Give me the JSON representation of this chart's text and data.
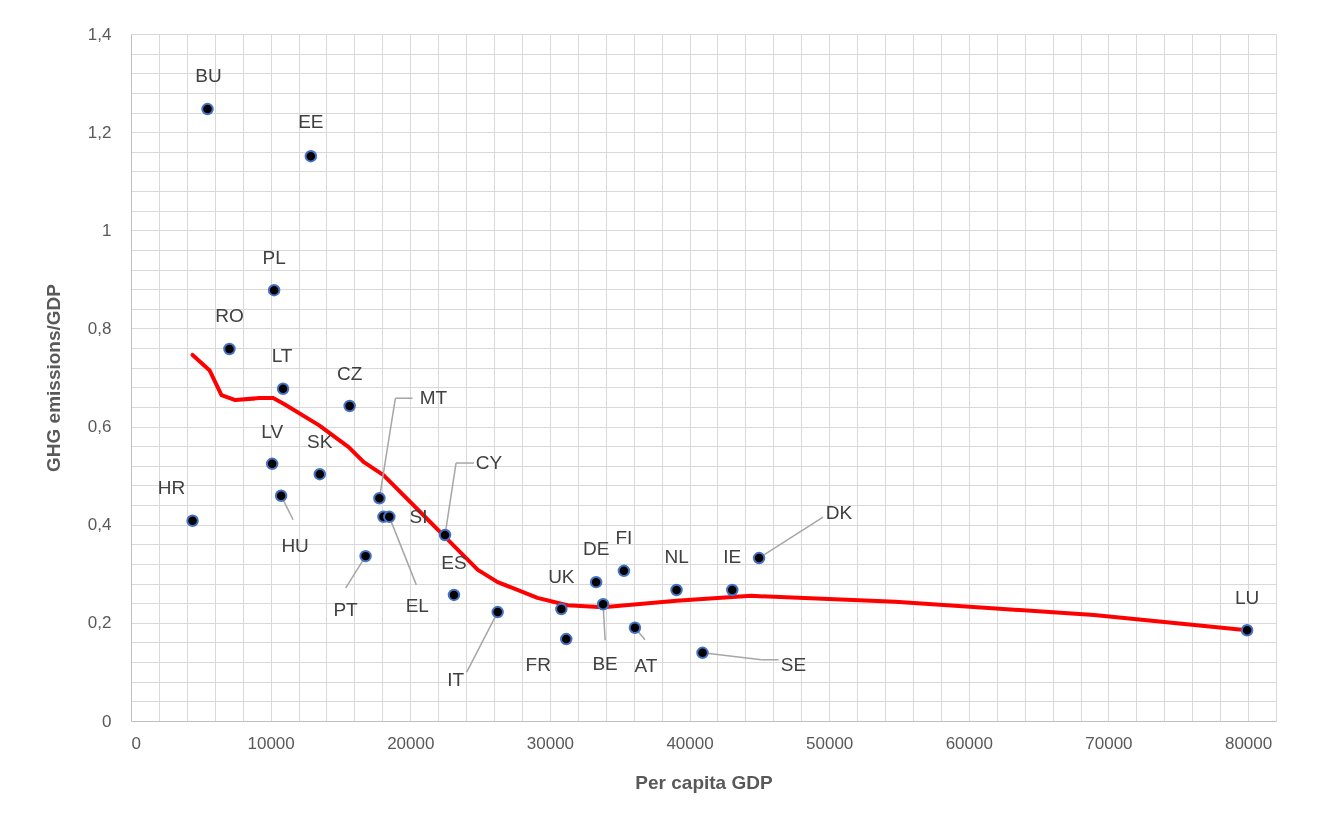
{
  "chart_data": {
    "type": "scatter",
    "xlabel": "Per capita GDP",
    "ylabel": "GHG emissions/GDP",
    "xlim": [
      0,
      82000
    ],
    "xticks": [
      0,
      {
        "value": 2000,
        "label": null
      },
      {
        "value": 4000,
        "label": null
      },
      {
        "value": 6000,
        "label": null
      },
      {
        "value": 8000,
        "label": null
      },
      10000,
      {
        "value": 12000,
        "label": null
      },
      {
        "value": 14000,
        "label": null
      },
      {
        "value": 16000,
        "label": null
      },
      {
        "value": 18000,
        "label": null
      },
      20000,
      {
        "value": 22000,
        "label": null
      },
      {
        "value": 24000,
        "label": null
      },
      {
        "value": 26000,
        "label": null
      },
      {
        "value": 28000,
        "label": null
      },
      30000,
      {
        "value": 32000,
        "label": null
      },
      {
        "value": 34000,
        "label": null
      },
      {
        "value": 36000,
        "label": null
      },
      {
        "value": 38000,
        "label": null
      },
      40000,
      {
        "value": 42000,
        "label": null
      },
      {
        "value": 44000,
        "label": null
      },
      {
        "value": 46000,
        "label": null
      },
      {
        "value": 48000,
        "label": null
      },
      50000,
      {
        "value": 52000,
        "label": null
      },
      {
        "value": 54000,
        "label": null
      },
      {
        "value": 56000,
        "label": null
      },
      {
        "value": 58000,
        "label": null
      },
      60000,
      {
        "value": 62000,
        "label": null
      },
      {
        "value": 64000,
        "label": null
      },
      {
        "value": 66000,
        "label": null
      },
      {
        "value": 68000,
        "label": null
      },
      70000,
      {
        "value": 72000,
        "label": null
      },
      {
        "value": 74000,
        "label": null
      },
      {
        "value": 76000,
        "label": null
      },
      {
        "value": 78000,
        "label": null
      },
      80000,
      {
        "value": 82000,
        "label": null
      }
    ],
    "ylim": [
      0,
      1.4
    ],
    "yticks": [
      0,
      {
        "value": 0.04,
        "label": null
      },
      {
        "value": 0.08,
        "label": null
      },
      {
        "value": 0.12,
        "label": null
      },
      {
        "value": 0.16,
        "label": null
      },
      {
        "value": 0.2,
        "label": "0,2"
      },
      {
        "value": 0.24,
        "label": null
      },
      {
        "value": 0.28,
        "label": null
      },
      {
        "value": 0.32,
        "label": null
      },
      {
        "value": 0.36,
        "label": null
      },
      {
        "value": 0.4,
        "label": "0,4"
      },
      {
        "value": 0.44,
        "label": null
      },
      {
        "value": 0.48,
        "label": null
      },
      {
        "value": 0.52,
        "label": null
      },
      {
        "value": 0.56,
        "label": null
      },
      {
        "value": 0.6,
        "label": "0,6"
      },
      {
        "value": 0.64,
        "label": null
      },
      {
        "value": 0.68,
        "label": null
      },
      {
        "value": 0.72,
        "label": null
      },
      {
        "value": 0.76,
        "label": null
      },
      {
        "value": 0.8,
        "label": "0,8"
      },
      {
        "value": 0.84,
        "label": null
      },
      {
        "value": 0.88,
        "label": null
      },
      {
        "value": 0.92,
        "label": null
      },
      {
        "value": 0.96,
        "label": null
      },
      1,
      {
        "value": 1.04,
        "label": null
      },
      {
        "value": 1.08,
        "label": null
      },
      {
        "value": 1.12,
        "label": null
      },
      {
        "value": 1.16,
        "label": null
      },
      {
        "value": 1.2,
        "label": "1,2"
      },
      {
        "value": 1.24,
        "label": null
      },
      {
        "value": 1.28,
        "label": null
      },
      {
        "value": 1.32,
        "label": null
      },
      {
        "value": 1.36,
        "label": null
      },
      {
        "value": 1.4,
        "label": "1,4"
      }
    ],
    "grid": true,
    "series": [
      {
        "marker": "circle",
        "color": "#000000",
        "x": [
          5480,
          12880,
          10250,
          7050,
          10890,
          15660,
          10110,
          13520,
          4410,
          10750,
          17790,
          18080,
          18500,
          22490,
          16800,
          23130,
          26260,
          30820,
          31170,
          33310,
          33810,
          35300,
          36090,
          39070,
          40930,
          43060,
          44980,
          79930
        ],
        "values": [
          1.247,
          1.151,
          0.878,
          0.758,
          0.677,
          0.642,
          0.524,
          0.503,
          0.408,
          0.459,
          0.454,
          0.416,
          0.416,
          0.379,
          0.336,
          0.257,
          0.222,
          0.228,
          0.167,
          0.283,
          0.238,
          0.306,
          0.19,
          0.267,
          0.139,
          0.267,
          0.332,
          0.185
        ]
      },
      {
        "type": "line",
        "marker": "none",
        "color": "#ff0000",
        "x": [
          4410,
          5620,
          6480,
          7470,
          9180,
          10180,
          10960,
          13450,
          15590,
          16650,
          18080,
          20570,
          22700,
          24840,
          26260,
          29110,
          31250,
          33810,
          39070,
          44410,
          54730,
          68970,
          79930
        ],
        "values": [
          0.746,
          0.715,
          0.664,
          0.654,
          0.658,
          0.658,
          0.646,
          0.603,
          0.558,
          0.528,
          0.501,
          0.43,
          0.369,
          0.308,
          0.283,
          0.251,
          0.236,
          0.232,
          0.245,
          0.255,
          0.243,
          0.216,
          0.185
        ]
      }
    ],
    "annotations": [
      {
        "text": "BU",
        "x": 5480,
        "y": 1.247
      },
      {
        "text": "EE",
        "x": 12880,
        "y": 1.151
      },
      {
        "text": "PL",
        "x": 10250,
        "y": 0.878
      },
      {
        "text": "RO",
        "x": 7050,
        "y": 0.758
      },
      {
        "text": "LT",
        "x": 10890,
        "y": 0.677
      },
      {
        "text": "CZ",
        "x": 15660,
        "y": 0.642
      },
      {
        "text": "LV",
        "x": 10110,
        "y": 0.524
      },
      {
        "text": "SK",
        "x": 13520,
        "y": 0.503
      },
      {
        "text": "HR",
        "x": 4410,
        "y": 0.408
      },
      {
        "text": "HU",
        "x": 10750,
        "y": 0.459
      },
      {
        "text": "MT",
        "x": 17790,
        "y": 0.454
      },
      {
        "text": "SI",
        "x": 18080,
        "y": 0.416
      },
      {
        "text": "EL",
        "x": 18500,
        "y": 0.416
      },
      {
        "text": "CY",
        "x": 22490,
        "y": 0.379
      },
      {
        "text": "PT",
        "x": 16800,
        "y": 0.336
      },
      {
        "text": "ES",
        "x": 23130,
        "y": 0.257
      },
      {
        "text": "IT",
        "x": 26260,
        "y": 0.222
      },
      {
        "text": "UK",
        "x": 30820,
        "y": 0.228
      },
      {
        "text": "FR",
        "x": 31170,
        "y": 0.167
      },
      {
        "text": "DE",
        "x": 33310,
        "y": 0.283
      },
      {
        "text": "BE",
        "x": 33810,
        "y": 0.238
      },
      {
        "text": "FI",
        "x": 35300,
        "y": 0.306
      },
      {
        "text": "AT",
        "x": 36090,
        "y": 0.19
      },
      {
        "text": "NL",
        "x": 39070,
        "y": 0.267
      },
      {
        "text": "SE",
        "x": 40930,
        "y": 0.139
      },
      {
        "text": "IE",
        "x": 43060,
        "y": 0.267
      },
      {
        "text": "DK",
        "x": 44980,
        "y": 0.332
      },
      {
        "text": "LU",
        "x": 79930,
        "y": 0.185
      }
    ]
  }
}
